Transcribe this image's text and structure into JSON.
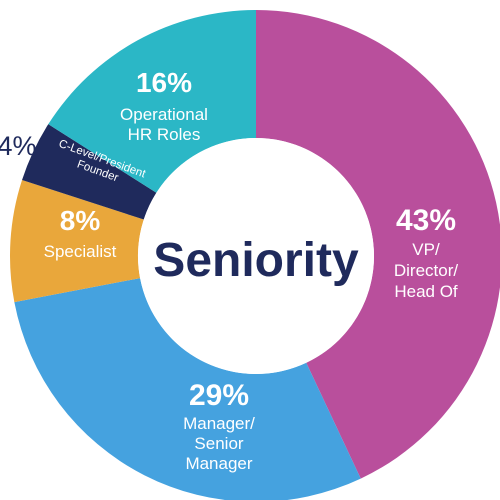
{
  "chart_data": {
    "type": "pie",
    "variant": "donut",
    "title": "Seniority",
    "start_angle_deg": 0,
    "direction": "clockwise",
    "slices": [
      {
        "label": "VP/\nDirector/\nHead Of",
        "value": 43,
        "value_label": "43%",
        "color": "#b94f9c"
      },
      {
        "label": "Manager/\nSenior\nManager",
        "value": 29,
        "value_label": "29%",
        "color": "#45a2df"
      },
      {
        "label": "Specialist",
        "value": 8,
        "value_label": "8%",
        "color": "#e9a73b"
      },
      {
        "label": "C-Level/President\nFounder",
        "value": 4,
        "value_label": "4%",
        "color": "#1f2a5c"
      },
      {
        "label": "Operational\nHR Roles",
        "value": 16,
        "value_label": "16%",
        "color": "#2bb7c6"
      }
    ]
  }
}
